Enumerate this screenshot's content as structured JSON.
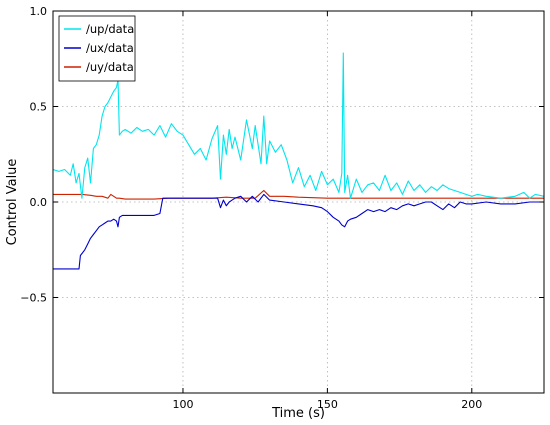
{
  "chart_data": {
    "type": "line",
    "title": "",
    "xlabel": "Time (s)",
    "ylabel": "Control Value",
    "xlim": [
      55,
      225
    ],
    "ylim": [
      -1.0,
      1.0
    ],
    "xticks": [
      100,
      150,
      200
    ],
    "yticks": [
      -0.5,
      0.0,
      0.5,
      1.0
    ],
    "xtick_labels": [
      "100",
      "150",
      "200"
    ],
    "ytick_labels": [
      "−0.5",
      "0.0",
      "0.5",
      "1.0"
    ],
    "grid": true,
    "legend_position": "top-left",
    "series": [
      {
        "name": "/up/data",
        "color": "#00e5ee",
        "x": [
          55,
          57,
          59,
          61,
          62,
          63,
          64,
          65,
          66,
          67,
          68,
          69,
          70,
          71,
          72,
          73,
          74,
          75,
          76,
          77,
          77.5,
          78,
          79,
          80,
          82,
          84,
          86,
          88,
          90,
          92,
          94,
          96,
          98,
          100,
          102,
          104,
          106,
          108,
          110,
          112,
          113,
          114,
          115,
          116,
          117,
          118,
          120,
          122,
          124,
          125,
          126,
          127,
          128,
          129,
          130,
          132,
          134,
          136,
          138,
          140,
          142,
          144,
          146,
          148,
          150,
          152,
          154,
          155,
          155.5,
          156,
          157,
          158,
          160,
          162,
          164,
          166,
          168,
          170,
          172,
          174,
          176,
          178,
          180,
          182,
          184,
          186,
          188,
          190,
          192,
          194,
          196,
          198,
          200,
          202,
          205,
          210,
          215,
          218,
          220,
          222,
          225
        ],
        "y": [
          0.17,
          0.16,
          0.17,
          0.14,
          0.2,
          0.1,
          0.15,
          0.02,
          0.18,
          0.23,
          0.1,
          0.28,
          0.3,
          0.35,
          0.45,
          0.5,
          0.52,
          0.55,
          0.58,
          0.6,
          0.64,
          0.35,
          0.37,
          0.38,
          0.36,
          0.39,
          0.37,
          0.38,
          0.35,
          0.4,
          0.34,
          0.41,
          0.37,
          0.35,
          0.3,
          0.25,
          0.28,
          0.22,
          0.33,
          0.4,
          0.12,
          0.35,
          0.25,
          0.38,
          0.28,
          0.34,
          0.22,
          0.43,
          0.28,
          0.4,
          0.3,
          0.2,
          0.45,
          0.2,
          0.32,
          0.26,
          0.3,
          0.22,
          0.1,
          0.18,
          0.08,
          0.14,
          0.06,
          0.16,
          0.09,
          0.12,
          0.05,
          0.15,
          0.78,
          0.05,
          0.14,
          0.02,
          0.12,
          0.05,
          0.09,
          0.1,
          0.06,
          0.14,
          0.06,
          0.1,
          0.04,
          0.11,
          0.06,
          0.09,
          0.05,
          0.08,
          0.06,
          0.09,
          0.07,
          0.06,
          0.05,
          0.04,
          0.03,
          0.04,
          0.03,
          0.02,
          0.03,
          0.05,
          0.02,
          0.04,
          0.03
        ]
      },
      {
        "name": "/ux/data",
        "color": "#0000cc",
        "x": [
          55,
          58,
          61,
          62,
          63,
          64,
          64.5,
          65,
          66,
          67,
          68,
          69,
          70,
          71,
          72,
          73,
          74,
          75,
          76,
          77,
          77.5,
          78,
          79,
          85,
          90,
          92,
          93,
          95,
          100,
          105,
          110,
          112,
          113,
          114,
          115,
          116,
          117,
          118,
          120,
          122,
          124,
          126,
          128,
          130,
          135,
          140,
          145,
          148,
          150,
          152,
          154,
          155,
          156,
          157,
          158,
          160,
          162,
          164,
          166,
          168,
          170,
          172,
          174,
          176,
          178,
          180,
          182,
          184,
          186,
          188,
          190,
          192,
          194,
          196,
          198,
          200,
          205,
          210,
          215,
          220,
          225
        ],
        "y": [
          -0.35,
          -0.35,
          -0.35,
          -0.35,
          -0.35,
          -0.35,
          -0.28,
          -0.27,
          -0.25,
          -0.22,
          -0.19,
          -0.17,
          -0.15,
          -0.13,
          -0.12,
          -0.11,
          -0.1,
          -0.1,
          -0.09,
          -0.1,
          -0.13,
          -0.08,
          -0.07,
          -0.07,
          -0.07,
          -0.06,
          0.02,
          0.02,
          0.02,
          0.02,
          0.02,
          0.02,
          -0.03,
          0.01,
          -0.02,
          0.0,
          0.01,
          0.02,
          0.03,
          0.0,
          0.03,
          0.0,
          0.04,
          0.01,
          0.0,
          -0.01,
          -0.02,
          -0.03,
          -0.05,
          -0.08,
          -0.1,
          -0.12,
          -0.13,
          -0.1,
          -0.09,
          -0.08,
          -0.06,
          -0.04,
          -0.05,
          -0.04,
          -0.05,
          -0.03,
          -0.04,
          -0.02,
          -0.01,
          -0.02,
          -0.01,
          0.0,
          0.0,
          -0.02,
          -0.04,
          -0.01,
          -0.03,
          0.0,
          -0.01,
          -0.01,
          0.0,
          -0.01,
          -0.01,
          0.0,
          0.0
        ]
      },
      {
        "name": "/uy/data",
        "color": "#cc2200",
        "x": [
          55,
          60,
          65,
          68,
          70,
          72,
          74,
          75,
          77,
          78,
          80,
          85,
          90,
          95,
          100,
          105,
          110,
          115,
          120,
          125,
          128,
          130,
          135,
          140,
          150,
          160,
          170,
          180,
          190,
          200,
          210,
          225
        ],
        "y": [
          0.04,
          0.04,
          0.04,
          0.035,
          0.03,
          0.03,
          0.02,
          0.04,
          0.02,
          0.02,
          0.015,
          0.015,
          0.015,
          0.02,
          0.02,
          0.02,
          0.02,
          0.025,
          0.02,
          0.02,
          0.06,
          0.03,
          0.03,
          0.025,
          0.02,
          0.02,
          0.02,
          0.02,
          0.02,
          0.02,
          0.02,
          0.02
        ]
      }
    ]
  }
}
